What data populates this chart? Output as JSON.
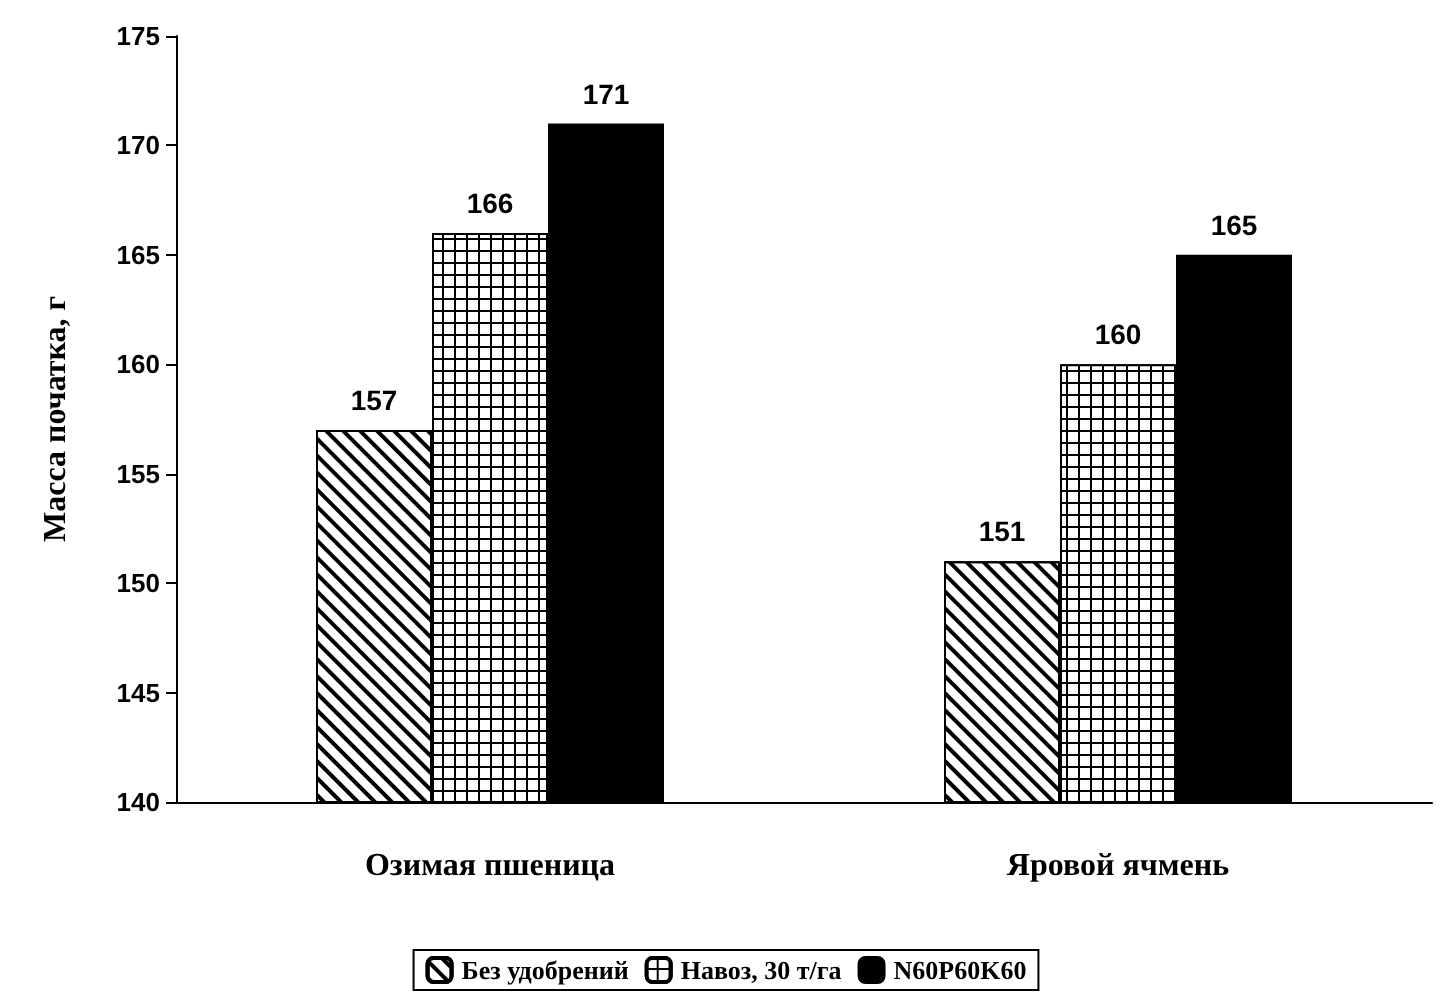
{
  "chart_data": {
    "type": "bar",
    "ylabel": "Масса початка, г",
    "categories": [
      "Озимая пшеница",
      "Яровой ячмень"
    ],
    "series": [
      {
        "name": "Без удобрений",
        "color": "#000000",
        "values": [
          157,
          151
        ]
      },
      {
        "name": "Навоз, 30 т/га",
        "color": "#000000",
        "values": [
          166,
          160
        ]
      },
      {
        "name": "N60P60K60",
        "color": "#000000",
        "values": [
          171,
          165
        ]
      }
    ],
    "ylim": [
      140,
      175
    ],
    "yticks": [
      140,
      145,
      150,
      155,
      160,
      165,
      170,
      175
    ],
    "data_labels": true,
    "grid": false,
    "legend": "bottom"
  }
}
